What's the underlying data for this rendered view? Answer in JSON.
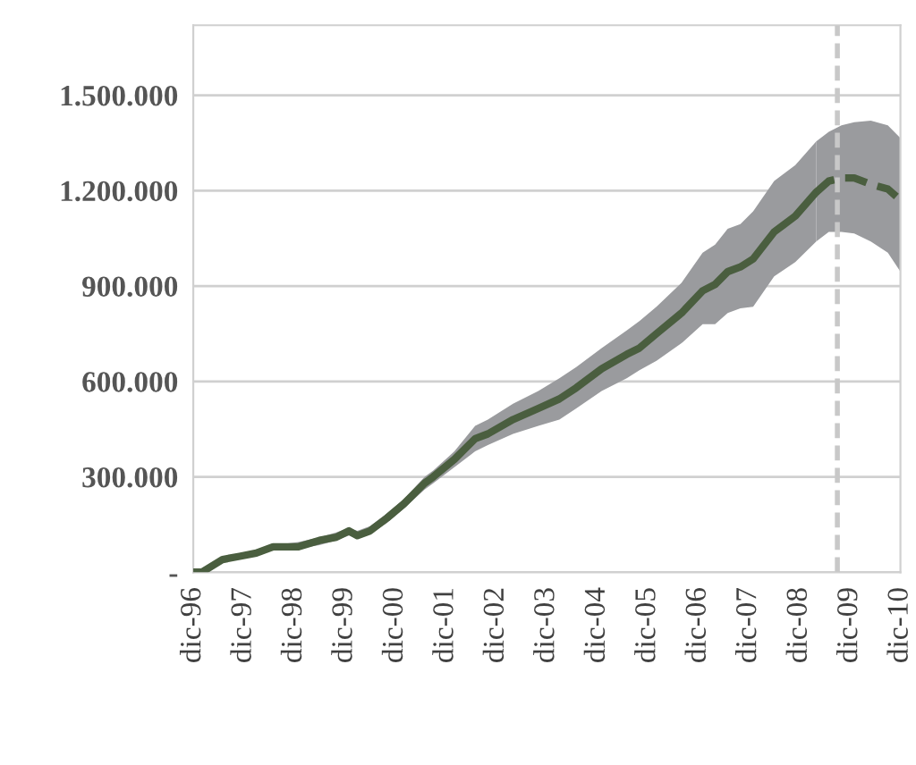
{
  "chart_data": {
    "type": "line",
    "series": [
      {
        "color": "#4a5e3f",
        "line_style": "solid",
        "x": [
          "1996-12",
          "1997-02",
          "1997-07",
          "1997-11",
          "1998-03",
          "1998-07",
          "1999-01",
          "1999-06",
          "1999-10",
          "2000-01",
          "2000-03",
          "2000-06",
          "2000-10",
          "2001-02",
          "2001-07",
          "2001-09",
          "2002-02",
          "2002-07",
          "2002-10",
          "2003-04",
          "2003-10",
          "2004-03",
          "2004-07",
          "2005-01",
          "2005-07",
          "2005-10",
          "2006-02",
          "2006-08",
          "2007-01",
          "2007-04",
          "2007-07",
          "2007-10",
          "2008-01",
          "2008-06",
          "2008-11",
          "2009-04"
        ],
        "values": [
          0,
          0,
          40000,
          50000,
          60000,
          80000,
          80000,
          100000,
          110000,
          130000,
          115000,
          130000,
          170000,
          215000,
          280000,
          300000,
          355000,
          420000,
          435000,
          480000,
          515000,
          545000,
          580000,
          640000,
          685000,
          705000,
          750000,
          815000,
          885000,
          905000,
          945000,
          960000,
          985000,
          1070000,
          1120000,
          1195000
        ],
        "upper": [
          0,
          5000,
          45000,
          60000,
          70000,
          85000,
          95000,
          110000,
          125000,
          140000,
          130000,
          145000,
          185000,
          230000,
          300000,
          320000,
          380000,
          460000,
          480000,
          530000,
          570000,
          610000,
          645000,
          705000,
          760000,
          790000,
          835000,
          910000,
          1005000,
          1030000,
          1080000,
          1095000,
          1135000,
          1230000,
          1280000,
          1355000
        ],
        "lower": [
          0,
          0,
          30000,
          45000,
          55000,
          70000,
          75000,
          85000,
          100000,
          115000,
          105000,
          120000,
          155000,
          200000,
          260000,
          280000,
          330000,
          380000,
          400000,
          435000,
          460000,
          480000,
          515000,
          570000,
          610000,
          635000,
          665000,
          720000,
          780000,
          780000,
          815000,
          830000,
          835000,
          930000,
          975000,
          1040000
        ]
      },
      {
        "color": "#4a5e3f",
        "line_style": "dashed",
        "x": [
          "2009-04",
          "2009-07",
          "2009-10",
          "2010-01",
          "2010-05",
          "2010-09",
          "2010-12"
        ],
        "values": [
          1195000,
          1230000,
          1240000,
          1240000,
          1220000,
          1205000,
          1170000
        ],
        "upper": [
          1355000,
          1385000,
          1405000,
          1415000,
          1420000,
          1405000,
          1365000
        ],
        "lower": [
          1040000,
          1070000,
          1070000,
          1065000,
          1040000,
          1005000,
          945000
        ]
      }
    ],
    "xlim": [
      "1996-12",
      "2010-12"
    ],
    "xticks": [
      {
        "value": "1996-12",
        "label": "dic-96"
      },
      {
        "value": "1997-12",
        "label": "dic-97"
      },
      {
        "value": "1998-12",
        "label": "dic-98"
      },
      {
        "value": "1999-12",
        "label": "dic-99"
      },
      {
        "value": "2000-12",
        "label": "dic-00"
      },
      {
        "value": "2001-12",
        "label": "dic-01"
      },
      {
        "value": "2002-12",
        "label": "dic-02"
      },
      {
        "value": "2003-12",
        "label": "dic-03"
      },
      {
        "value": "2004-12",
        "label": "dic-04"
      },
      {
        "value": "2005-12",
        "label": "dic-05"
      },
      {
        "value": "2006-12",
        "label": "dic-06"
      },
      {
        "value": "2007-12",
        "label": "dic-07"
      },
      {
        "value": "2008-12",
        "label": "dic-08"
      },
      {
        "value": "2009-12",
        "label": "dic-09"
      },
      {
        "value": "2010-12",
        "label": "dic-10"
      }
    ],
    "ylim": [
      0,
      1720000
    ],
    "yticks": [
      {
        "value": 0,
        "label": "-"
      },
      {
        "value": 300000,
        "label": "300.000"
      },
      {
        "value": 600000,
        "label": "600.000"
      },
      {
        "value": 900000,
        "label": "900.000"
      },
      {
        "value": 1200000,
        "label": "1.200.000"
      },
      {
        "value": 1500000,
        "label": "1.500.000"
      }
    ],
    "grid": "y",
    "legend": false,
    "marker": "none",
    "ref_lines": [
      {
        "axis": "x",
        "value": "2009-09",
        "color": "#c8c8c8",
        "line_style": "dashed"
      }
    ]
  }
}
